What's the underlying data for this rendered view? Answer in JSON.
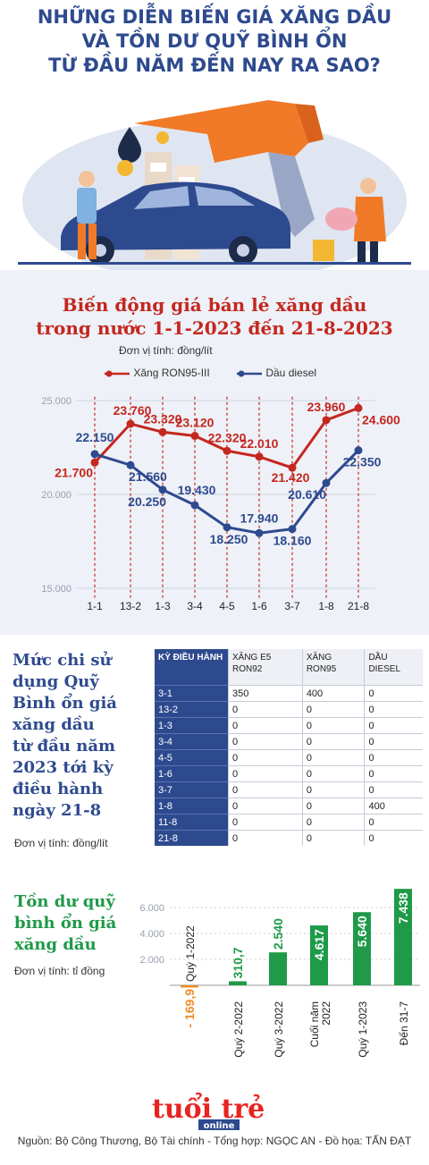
{
  "header": {
    "title_lines": [
      "NHỮNG DIỄN BIẾN GIÁ XĂNG DẦU",
      "VÀ TỒN DƯ QUỸ BÌNH ỔN",
      "TỪ ĐẦU NĂM ĐẾN NAY RA SAO?"
    ]
  },
  "price_section": {
    "title_lines": [
      "Biến động giá bán lẻ xăng dầu",
      "trong nước 1-1-2023 đến 21-8-2023"
    ],
    "unit": "Đơn vị tính: đồng/lít"
  },
  "stabilization_section": {
    "title_lines": [
      "Mức chi sử",
      "dụng Quỹ",
      "Bình ổn giá",
      "xăng dầu",
      "từ đầu năm",
      "2023 tới kỳ",
      "điều hành",
      "ngày 21-8"
    ],
    "unit": "Đơn vị tính: đồng/lít",
    "headers": [
      "KỲ ĐIỀU HÀNH",
      "XĂNG E5 RON92",
      "XĂNG RON95",
      "DẦU DIESEL"
    ],
    "rows": [
      [
        "3-1",
        "350",
        "400",
        "0"
      ],
      [
        "13-2",
        "0",
        "0",
        "0"
      ],
      [
        "1-3",
        "0",
        "0",
        "0"
      ],
      [
        "3-4",
        "0",
        "0",
        "0"
      ],
      [
        "4-5",
        "0",
        "0",
        "0"
      ],
      [
        "1-6",
        "0",
        "0",
        "0"
      ],
      [
        "3-7",
        "0",
        "0",
        "0"
      ],
      [
        "1-8",
        "0",
        "0",
        "400"
      ],
      [
        "11-8",
        "0",
        "0",
        "0"
      ],
      [
        "21-8",
        "0",
        "0",
        "0"
      ]
    ]
  },
  "balance_section": {
    "title_lines": [
      "Tồn dư quỹ",
      "bình ổn giá",
      "xăng dầu"
    ],
    "unit": "Đơn vị tính: tỉ đồng"
  },
  "footer": {
    "logo_text": "tuổi trẻ",
    "logo_sub": "online",
    "source": "Nguồn: Bộ Công Thương, Bộ Tài chính - Tổng hợp: NGỌC AN - Đồ họa: TẤN ĐẠT"
  },
  "colors": {
    "navy": "#2e4a8f",
    "red": "#c4271f",
    "green": "#1e9a48",
    "orange": "#f08a24"
  },
  "chart_data": [
    {
      "type": "line",
      "x": [
        "1-1",
        "13-2",
        "1-3",
        "3-4",
        "4-5",
        "1-6",
        "3-7",
        "1-8",
        "21-8"
      ],
      "ylim": [
        15000,
        25000
      ],
      "yticks": [
        "15.000",
        "20.000",
        "25.000"
      ],
      "series": [
        {
          "name": "Xăng RON95-III",
          "color": "#c4271f",
          "values": [
            21700,
            23760,
            23320,
            23120,
            22320,
            22010,
            21420,
            23960,
            24600
          ],
          "labels": [
            "21.700",
            "23.760",
            "23.320",
            "23.120",
            "22.320",
            "22.010",
            "21.420",
            "23.960",
            "24.600"
          ]
        },
        {
          "name": "Dầu diesel",
          "color": "#2e4a8f",
          "values": [
            22150,
            21560,
            20250,
            19430,
            18250,
            17940,
            18160,
            20610,
            22350
          ],
          "labels": [
            "22.150",
            "21.560",
            "20.250",
            "19.430",
            "18.250",
            "17.940",
            "18.160",
            "20.610",
            "22.350"
          ]
        }
      ]
    },
    {
      "type": "bar",
      "categories": [
        "Quý 1-2022",
        "Quý 2-2022",
        "Quý 3-2022",
        "Cuối năm 2022",
        "Quý 1-2023",
        "Đến 31-7"
      ],
      "values": [
        -169.9,
        310.7,
        2540,
        4617,
        5640,
        7438
      ],
      "labels": [
        "- 169,9",
        "310,7",
        "2.540",
        "4.617",
        "5.640",
        "7.438"
      ],
      "ylim": [
        -1000,
        7500
      ],
      "yticks": [
        "2.000",
        "4.000",
        "6.000"
      ]
    }
  ]
}
